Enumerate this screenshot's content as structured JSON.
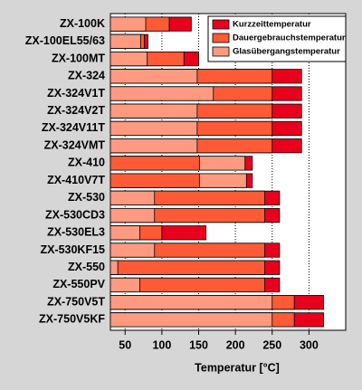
{
  "chart_data": {
    "type": "overlapping-bar",
    "orientation": "horizontal",
    "x_label": "Temperatur [°C]",
    "categories": [
      "ZX-100K",
      "ZX-100EL55/63",
      "ZX-100MT",
      "ZX-324",
      "ZX-324V1T",
      "ZX-324V2T",
      "ZX-324V11T",
      "ZX-324VMT",
      "ZX-410",
      "ZX-410V7T",
      "ZX-530",
      "ZX-530CD3",
      "ZX-530EL3",
      "ZX-530KF15",
      "ZX-550",
      "ZX-550PV",
      "ZX-750V5T",
      "ZX-750V5KF"
    ],
    "series": [
      {
        "name": "Kurzzeittemperatur",
        "color": "#e8001c",
        "values": [
          140,
          81,
          150,
          290,
          290,
          290,
          290,
          290,
          223,
          223,
          260,
          260,
          160,
          260,
          260,
          260,
          320,
          320
        ]
      },
      {
        "name": "Dauergebrauchstemperatur",
        "color": "#ff5a36",
        "values": [
          110,
          76,
          130,
          250,
          250,
          250,
          250,
          250,
          151,
          151,
          240,
          240,
          100,
          240,
          240,
          240,
          280,
          280
        ]
      },
      {
        "name": "Glasübergangstemperatur",
        "color": "#ff9a80",
        "values": [
          78,
          71,
          80,
          148,
          170,
          148,
          148,
          148,
          213,
          215,
          90,
          90,
          70,
          90,
          40,
          70,
          250,
          250
        ]
      }
    ],
    "xlim": [
      30,
      350
    ],
    "xticks": [
      50,
      100,
      150,
      200,
      250,
      300
    ],
    "grid": true,
    "legend": "upper right"
  }
}
